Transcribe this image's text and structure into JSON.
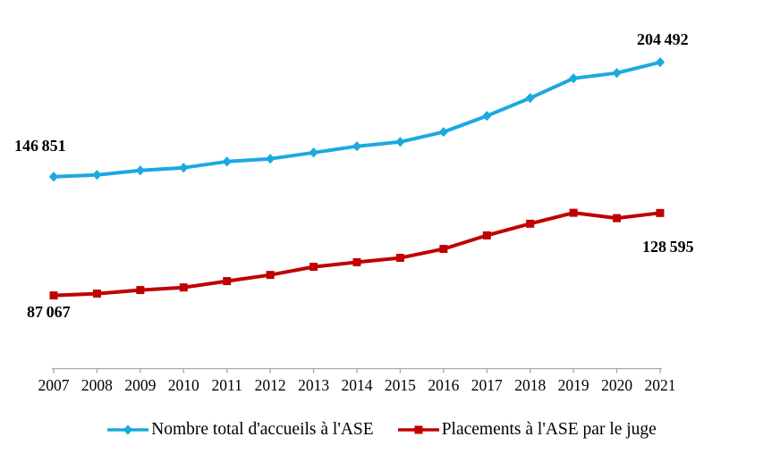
{
  "colors": {
    "series_blue": "#1BA9E0",
    "series_red": "#C00000",
    "axis": "#A6A6A6",
    "text": "#000000",
    "background": "#FFFFFF"
  },
  "chart_data": {
    "type": "line",
    "title": "",
    "xlabel": "",
    "ylabel": "",
    "categories": [
      "2007",
      "2008",
      "2009",
      "2010",
      "2011",
      "2012",
      "2013",
      "2014",
      "2015",
      "2016",
      "2017",
      "2018",
      "2019",
      "2020",
      "2021"
    ],
    "ylim": [
      50000,
      230000
    ],
    "grid": false,
    "y_axis_visible": false,
    "legend_position": "bottom",
    "series": [
      {
        "name": "Nombre total d'accueils à l'ASE",
        "marker": "diamond",
        "color": "#1BA9E0",
        "values": [
          146851,
          147800,
          150000,
          151400,
          154500,
          155900,
          159000,
          162200,
          164400,
          169400,
          177500,
          186500,
          196400,
          199100,
          204492
        ],
        "start_label": "146 851",
        "end_label": "204 492"
      },
      {
        "name": "Placements à l'ASE par le juge",
        "marker": "square",
        "color": "#C00000",
        "values": [
          87067,
          88000,
          89800,
          91100,
          94300,
          97400,
          101500,
          103800,
          106000,
          110500,
          117300,
          123200,
          128700,
          126000,
          128595
        ],
        "start_label": "87 067",
        "end_label": "128 595"
      }
    ]
  }
}
